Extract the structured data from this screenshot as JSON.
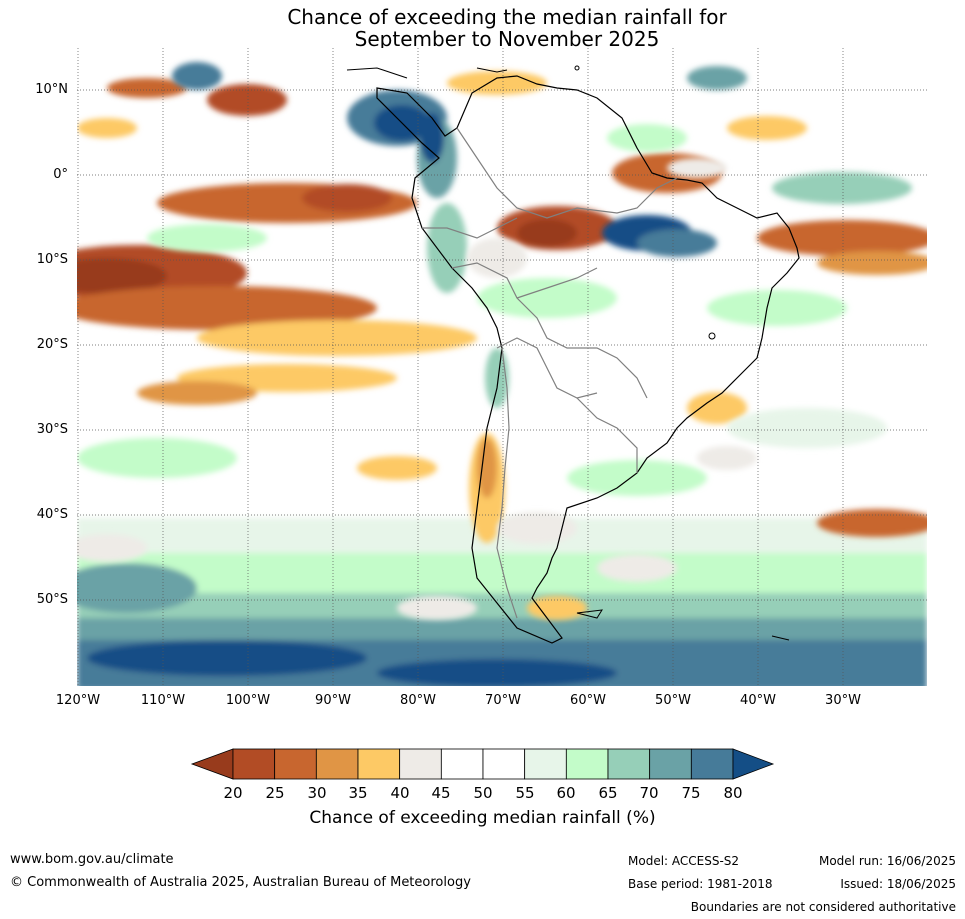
{
  "title": {
    "line1": "Chance of exceeding the median rainfall for",
    "line2": "September to November 2025"
  },
  "map": {
    "latitude_labels": [
      "10°N",
      "0°",
      "10°S",
      "20°S",
      "30°S",
      "40°S",
      "50°S"
    ],
    "longitude_labels": [
      "120°W",
      "110°W",
      "100°W",
      "90°W",
      "80°W",
      "70°W",
      "60°W",
      "50°W",
      "40°W",
      "30°W"
    ],
    "ocean_color": "#ffffff",
    "coast_color": "#000000",
    "border_color": "#808080"
  },
  "colorbar": {
    "ticks": [
      "20",
      "25",
      "30",
      "35",
      "40",
      "45",
      "50",
      "55",
      "60",
      "65",
      "70",
      "75",
      "80"
    ],
    "colors": [
      "#983b1c",
      "#b24c25",
      "#c8662f",
      "#e09545",
      "#fdc965",
      "#eeebe7",
      "#ffffff",
      "#ffffff",
      "#e7f5e9",
      "#c3fcc9",
      "#96cfb8",
      "#6aa2a6",
      "#467b99",
      "#144e86"
    ],
    "label": "Chance of exceeding median rainfall (%)"
  },
  "footer": {
    "website": "www.bom.gov.au/climate",
    "copyright": "© Commonwealth of Australia 2025, Australian Bureau of Meteorology",
    "model": "Model: ACCESS-S2",
    "base_period": "Base period: 1981-2018",
    "model_run": "Model run: 16/06/2025",
    "issued": "Issued: 18/06/2025",
    "disclaimer": "Boundaries are not considered authoritative"
  }
}
